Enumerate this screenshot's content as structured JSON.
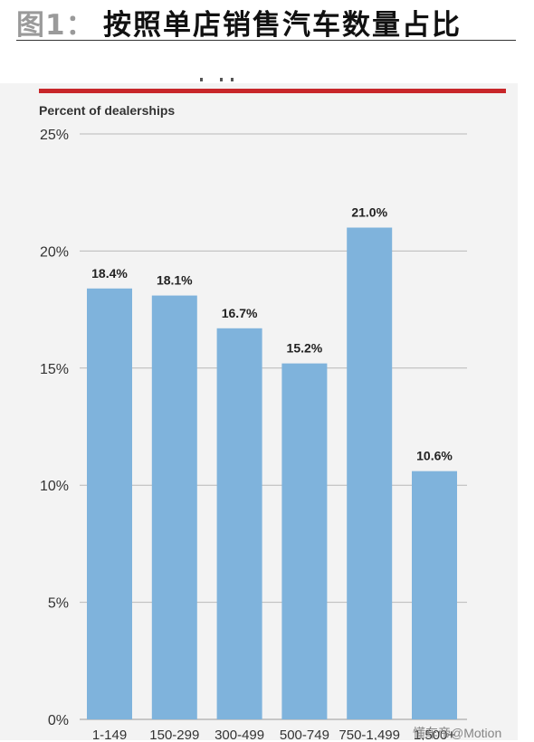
{
  "header": {
    "figure_label": "图1：",
    "title": "按照单店销售汽车数量占比"
  },
  "watermark": "懂车帝@Motion",
  "chart_data": {
    "type": "bar",
    "title": "",
    "ylabel": "Percent of dealerships",
    "xlabel": "",
    "categories": [
      "1-149",
      "150-299",
      "300-499",
      "500-749",
      "750-1,499",
      "1,500+"
    ],
    "values": [
      18.4,
      18.1,
      16.7,
      15.2,
      21.0,
      10.6
    ],
    "data_labels": [
      "18.4%",
      "18.1%",
      "16.7%",
      "15.2%",
      "21.0%",
      "10.6%"
    ],
    "ylim": [
      0,
      25
    ],
    "yticks": [
      0,
      5,
      10,
      15,
      20,
      25
    ],
    "ytick_labels": [
      "0%",
      "5%",
      "10%",
      "15%",
      "20%",
      "25%"
    ],
    "grid": true,
    "colors": {
      "bar": "#7fb3dc",
      "grid": "#b8b8b8",
      "accent": "#c8262a"
    }
  }
}
